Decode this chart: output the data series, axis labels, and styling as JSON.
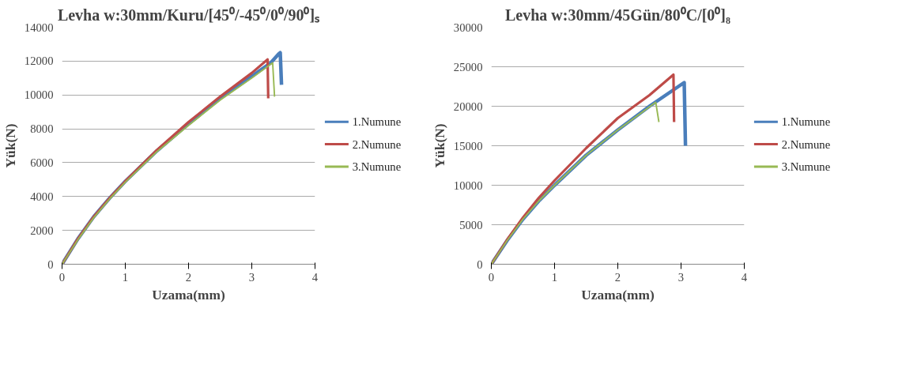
{
  "chart_data": [
    {
      "type": "line",
      "title": "Levha w:30mm/Kuru/[45⁰/-45⁰/0⁰/90⁰]ₛ",
      "xlabel": "Uzama(mm)",
      "ylabel": "Yük(N)",
      "xlim": [
        0,
        4
      ],
      "ylim": [
        0,
        14000
      ],
      "xticks": [
        0,
        1,
        2,
        3,
        4
      ],
      "yticks": [
        0,
        2000,
        4000,
        6000,
        8000,
        10000,
        12000,
        14000
      ],
      "grid": "y",
      "legend": "right",
      "marker": "none",
      "line_style": "solid",
      "series": [
        {
          "name": "1.Numune",
          "color": "#4a7ebb",
          "x": [
            0,
            0.25,
            0.5,
            0.75,
            1,
            1.5,
            2,
            2.5,
            3,
            3.3,
            3.42,
            3.45,
            3.47
          ],
          "values": [
            0,
            1500,
            2800,
            3900,
            4900,
            6700,
            8300,
            9800,
            11100,
            11900,
            12400,
            12500,
            10600
          ]
        },
        {
          "name": "2.Numune",
          "color": "#be4b48",
          "x": [
            0,
            0.25,
            0.5,
            0.75,
            1,
            1.5,
            2,
            2.5,
            3,
            3.25,
            3.26
          ],
          "values": [
            0,
            1500,
            2800,
            3900,
            4900,
            6750,
            8400,
            9900,
            11300,
            12100,
            9800
          ]
        },
        {
          "name": "3.Numune",
          "color": "#98b954",
          "x": [
            0,
            0.25,
            0.5,
            0.75,
            1,
            1.5,
            2,
            2.5,
            3,
            3.33,
            3.36
          ],
          "values": [
            0,
            1450,
            2750,
            3850,
            4850,
            6650,
            8200,
            9700,
            11000,
            11900,
            9900
          ]
        }
      ]
    },
    {
      "type": "line",
      "title": "Levha w:30mm/45Gün/80⁰C/[0⁰]₈",
      "xlabel": "Uzama(mm)",
      "ylabel": "Yük(N)",
      "xlim": [
        0,
        4
      ],
      "ylim": [
        0,
        30000
      ],
      "xticks": [
        0,
        1,
        2,
        3,
        4
      ],
      "yticks": [
        0,
        5000,
        10000,
        15000,
        20000,
        25000,
        30000
      ],
      "grid": "y",
      "legend": "right",
      "marker": "none",
      "line_style": "solid",
      "series": [
        {
          "name": "1.Numune",
          "color": "#4a7ebb",
          "x": [
            0,
            0.25,
            0.5,
            0.75,
            1,
            1.5,
            2,
            2.5,
            3.05,
            3.07
          ],
          "values": [
            0,
            3000,
            5700,
            8000,
            10000,
            13800,
            17000,
            20000,
            23000,
            15000
          ]
        },
        {
          "name": "2.Numune",
          "color": "#be4b48",
          "x": [
            0,
            0.25,
            0.5,
            0.75,
            1,
            1.5,
            2,
            2.5,
            2.88,
            2.89
          ],
          "values": [
            0,
            3100,
            5900,
            8400,
            10600,
            14700,
            18500,
            21400,
            24000,
            18000
          ]
        },
        {
          "name": "3.Numune",
          "color": "#98b954",
          "x": [
            0,
            0.25,
            0.5,
            0.75,
            1,
            1.5,
            2,
            2.6,
            2.65
          ],
          "values": [
            0,
            3000,
            5700,
            8000,
            10000,
            13800,
            17000,
            20500,
            18000
          ]
        }
      ]
    }
  ]
}
